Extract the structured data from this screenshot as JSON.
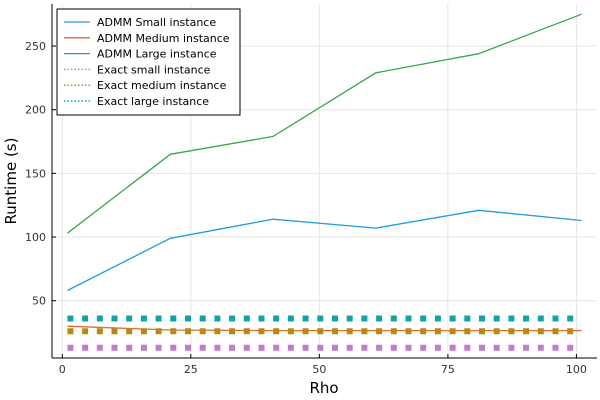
{
  "chart_data": {
    "type": "line",
    "title": "",
    "xlabel": "Rho",
    "ylabel": "Runtime (s)",
    "xlim": [
      -2,
      104
    ],
    "ylim": [
      5,
      283
    ],
    "xticks": [
      0,
      25,
      50,
      75,
      100
    ],
    "yticks": [
      50,
      100,
      150,
      200,
      250
    ],
    "grid": true,
    "legend_position": "top-left",
    "series": [
      {
        "name": "ADMM Small instance",
        "style": "solid",
        "color": "#1f9ee0",
        "x": [
          1,
          21,
          41,
          61,
          81,
          101
        ],
        "y": [
          58,
          99,
          114,
          107,
          121,
          113
        ]
      },
      {
        "name": "ADMM Medium instance",
        "style": "solid",
        "color": "#e06a3a",
        "x": [
          1,
          21,
          41,
          61,
          81,
          101
        ],
        "y": [
          30,
          27,
          26.5,
          26.5,
          26.5,
          26.5
        ]
      },
      {
        "name": "ADMM Large instance",
        "style": "solid",
        "color": "#3aa84a",
        "x": [
          1,
          21,
          41,
          61,
          81,
          101
        ],
        "y": [
          103,
          165,
          179,
          229,
          244,
          275
        ]
      },
      {
        "name": "Exact small instance",
        "style": "dotted",
        "color": "#c27bd0",
        "x": [
          1,
          101
        ],
        "y": [
          13,
          13
        ]
      },
      {
        "name": "Exact medium instance",
        "style": "dotted",
        "color": "#b58a10",
        "x": [
          1,
          101
        ],
        "y": [
          26,
          26
        ]
      },
      {
        "name": "Exact large instance",
        "style": "dotted",
        "color": "#10a5a5",
        "x": [
          1,
          101
        ],
        "y": [
          36,
          36
        ]
      }
    ]
  }
}
